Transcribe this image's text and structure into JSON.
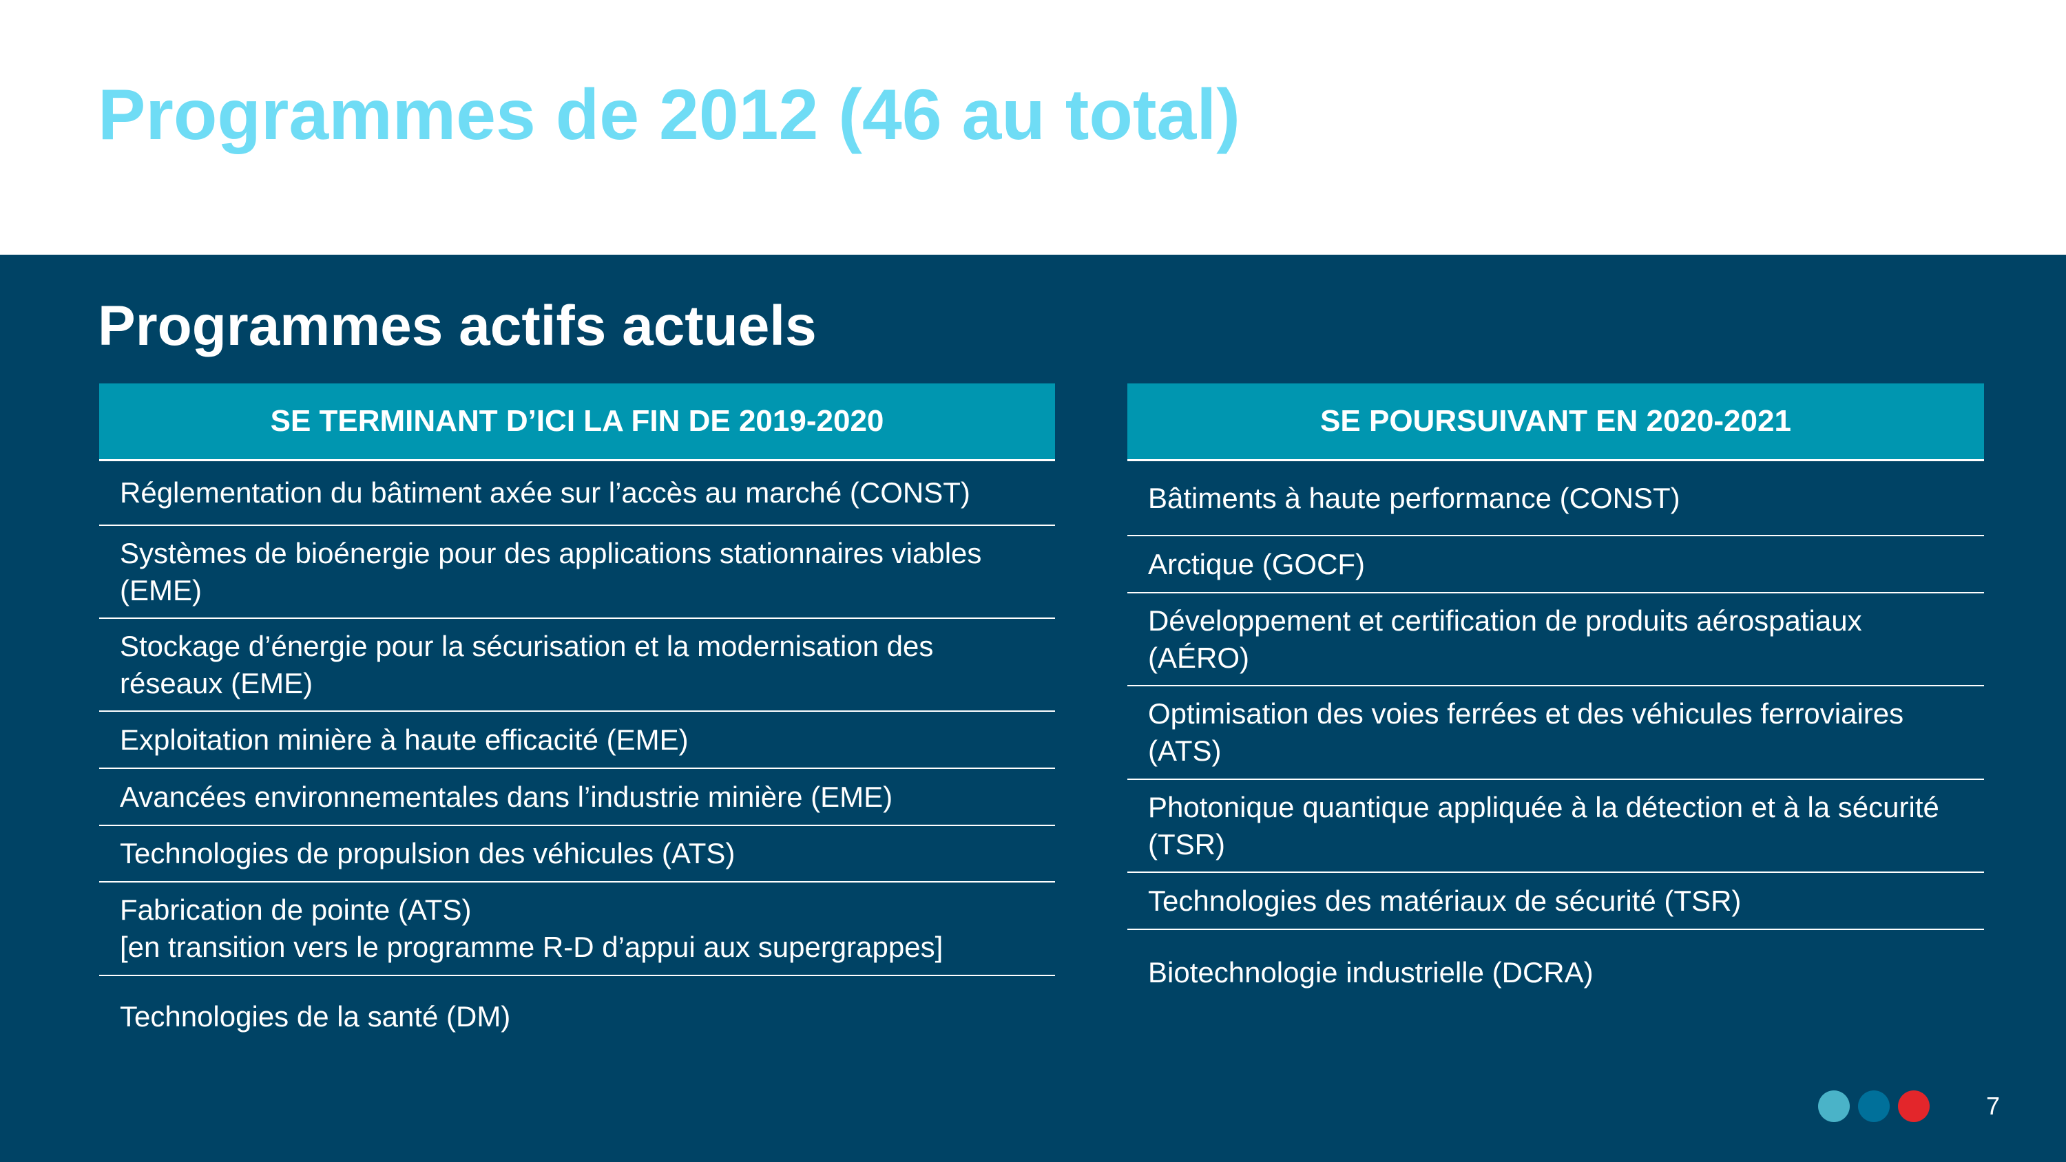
{
  "slide": {
    "title": "Programmes de 2012 (46 au total)",
    "subtitle": "Programmes actifs actuels",
    "page_number": "7"
  },
  "left_table": {
    "header": "SE TERMINANT D’ICI LA FIN DE 2019-2020",
    "rows": [
      "Réglementation du bâtiment axée sur l’accès au marché (CONST)",
      "Systèmes de bioénergie pour des applications stationnaires viables (EME)",
      "Stockage d’énergie pour la sécurisation et la modernisation des réseaux (EME)",
      "Exploitation minière à haute efficacité (EME)",
      "Avancées environnementales dans l’industrie minière (EME)",
      "Technologies de propulsion des véhicules (ATS)",
      "Fabrication de pointe (ATS)\n[en transition vers le programme R-D d’appui aux supergrappes]",
      "Technologies de la santé (DM)"
    ]
  },
  "right_table": {
    "header": "SE POURSUIVANT EN 2020-2021",
    "rows": [
      "Bâtiments à haute performance (CONST)",
      "Arctique (GOCF)",
      "Développement et certification de produits aérospatiaux (AÉRO)",
      "Optimisation des voies ferrées et des véhicules ferroviaires (ATS)",
      "Photonique quantique appliquée à la détection et à la sécurité (TSR)",
      "Technologies des matériaux de sécurité (TSR)",
      "Biotechnologie industrielle (DCRA)"
    ]
  },
  "colors": {
    "title": "#6fdcf5",
    "panel": "#004365",
    "table_header": "#0096b0",
    "dots": [
      "#4ab3c8",
      "#00709a",
      "#e3262b"
    ]
  }
}
